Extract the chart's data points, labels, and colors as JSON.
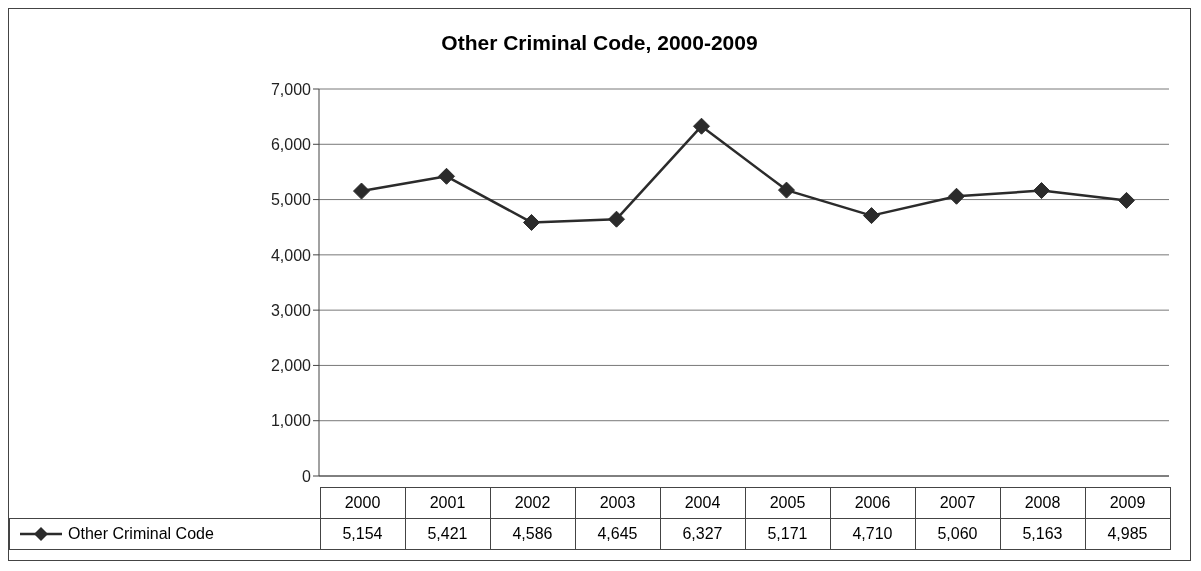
{
  "chart_data": {
    "type": "line",
    "title": "Other Criminal Code, 2000-2009",
    "categories": [
      "2000",
      "2001",
      "2002",
      "2003",
      "2004",
      "2005",
      "2006",
      "2007",
      "2008",
      "2009"
    ],
    "series": [
      {
        "name": "Other Criminal Code",
        "color": "#2b2b2b",
        "values": [
          5154,
          5421,
          4586,
          4645,
          6327,
          5171,
          4710,
          5060,
          5163,
          4985
        ],
        "value_labels": [
          "5,154",
          "5,421",
          "4,586",
          "4,645",
          "6,327",
          "5,171",
          "4,710",
          "5,060",
          "5,163",
          "4,985"
        ]
      }
    ],
    "ylim": [
      0,
      7000
    ],
    "yticks": [
      {
        "value": 0,
        "label": "0"
      },
      {
        "value": 1000,
        "label": "1,000"
      },
      {
        "value": 2000,
        "label": "2,000"
      },
      {
        "value": 3000,
        "label": "3,000"
      },
      {
        "value": 4000,
        "label": "4,000"
      },
      {
        "value": 5000,
        "label": "5,000"
      },
      {
        "value": 6000,
        "label": "6,000"
      },
      {
        "value": 7000,
        "label": "7,000"
      }
    ],
    "grid": "y",
    "legend": "bottom left",
    "marker": "diamond",
    "line_style": "solid"
  }
}
